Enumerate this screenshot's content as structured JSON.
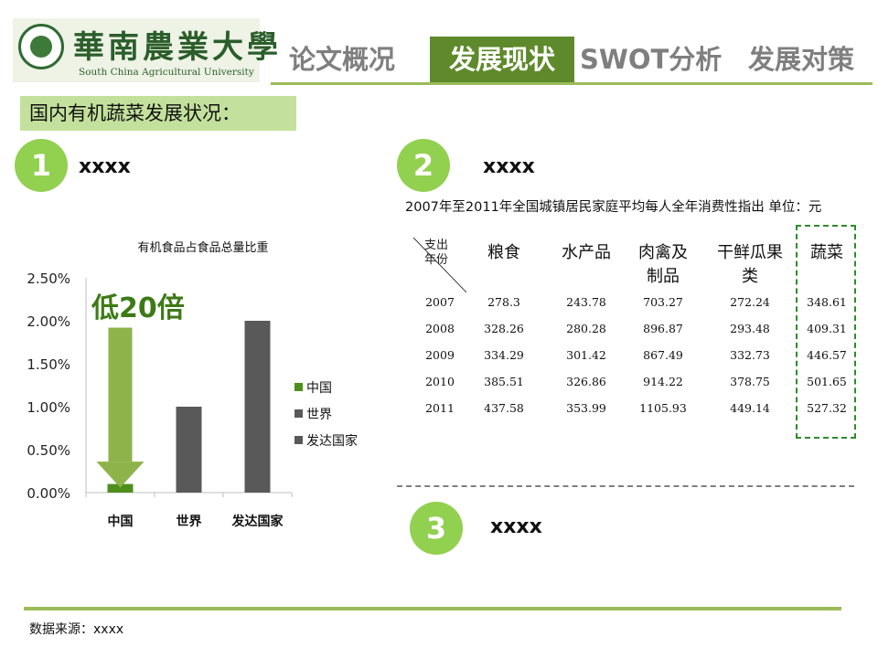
{
  "header": {
    "logo_cn": "華南農業大學",
    "logo_en": "South China Agricultural University",
    "tabs": [
      {
        "label": "论文概况",
        "active": false
      },
      {
        "label": "发展现状",
        "active": true
      },
      {
        "label": "SWOT分析",
        "active": false
      },
      {
        "label": "发展对策",
        "active": false
      }
    ]
  },
  "subtitle": "国内有机蔬菜发展状况：",
  "sections": [
    {
      "number": "1",
      "title": "xxxx"
    },
    {
      "number": "2",
      "title": "xxxx"
    },
    {
      "number": "3",
      "title": "xxxx"
    }
  ],
  "chart_data": {
    "type": "bar",
    "title": "有机食品占食品总量比重",
    "categories": [
      "中国",
      "世界",
      "发达国家"
    ],
    "values": [
      0.1,
      1.0,
      2.0
    ],
    "value_unit": "%",
    "ylim": [
      0,
      2.5
    ],
    "yticks": [
      "0.00%",
      "0.50%",
      "1.00%",
      "1.50%",
      "2.00%",
      "2.50%"
    ],
    "legend": [
      "中国",
      "世界",
      "发达国家"
    ],
    "legend_position": "right",
    "colors": {
      "中国": "#4e8f1b",
      "世界": "#595959",
      "发达国家": "#595959"
    },
    "annotation": {
      "text": "低20倍",
      "color": "#3d7a16",
      "arrow_color": "#8db34a"
    }
  },
  "table": {
    "title": "2007年至2011年全国城镇居民家庭平均每人全年消费性指出  单位：元",
    "corner_top": "支出",
    "corner_bottom": "年份",
    "columns": [
      "粮食",
      "水产品",
      "肉禽及制品",
      "干鲜瓜果类",
      "蔬菜"
    ],
    "rows": [
      {
        "year": "2007",
        "values": [
          "278.3",
          "243.78",
          "703.27",
          "272.24",
          "348.61"
        ]
      },
      {
        "year": "2008",
        "values": [
          "328.26",
          "280.28",
          "896.87",
          "293.48",
          "409.31"
        ]
      },
      {
        "year": "2009",
        "values": [
          "334.29",
          "301.42",
          "867.49",
          "332.73",
          "446.57"
        ]
      },
      {
        "year": "2010",
        "values": [
          "385.51",
          "326.86",
          "914.22",
          "378.75",
          "501.65"
        ]
      },
      {
        "year": "2011",
        "values": [
          "437.58",
          "353.99",
          "1105.93",
          "449.14",
          "527.32"
        ]
      }
    ],
    "highlight_color": "#2e8b2e"
  },
  "source": "数据来源：xxxx"
}
